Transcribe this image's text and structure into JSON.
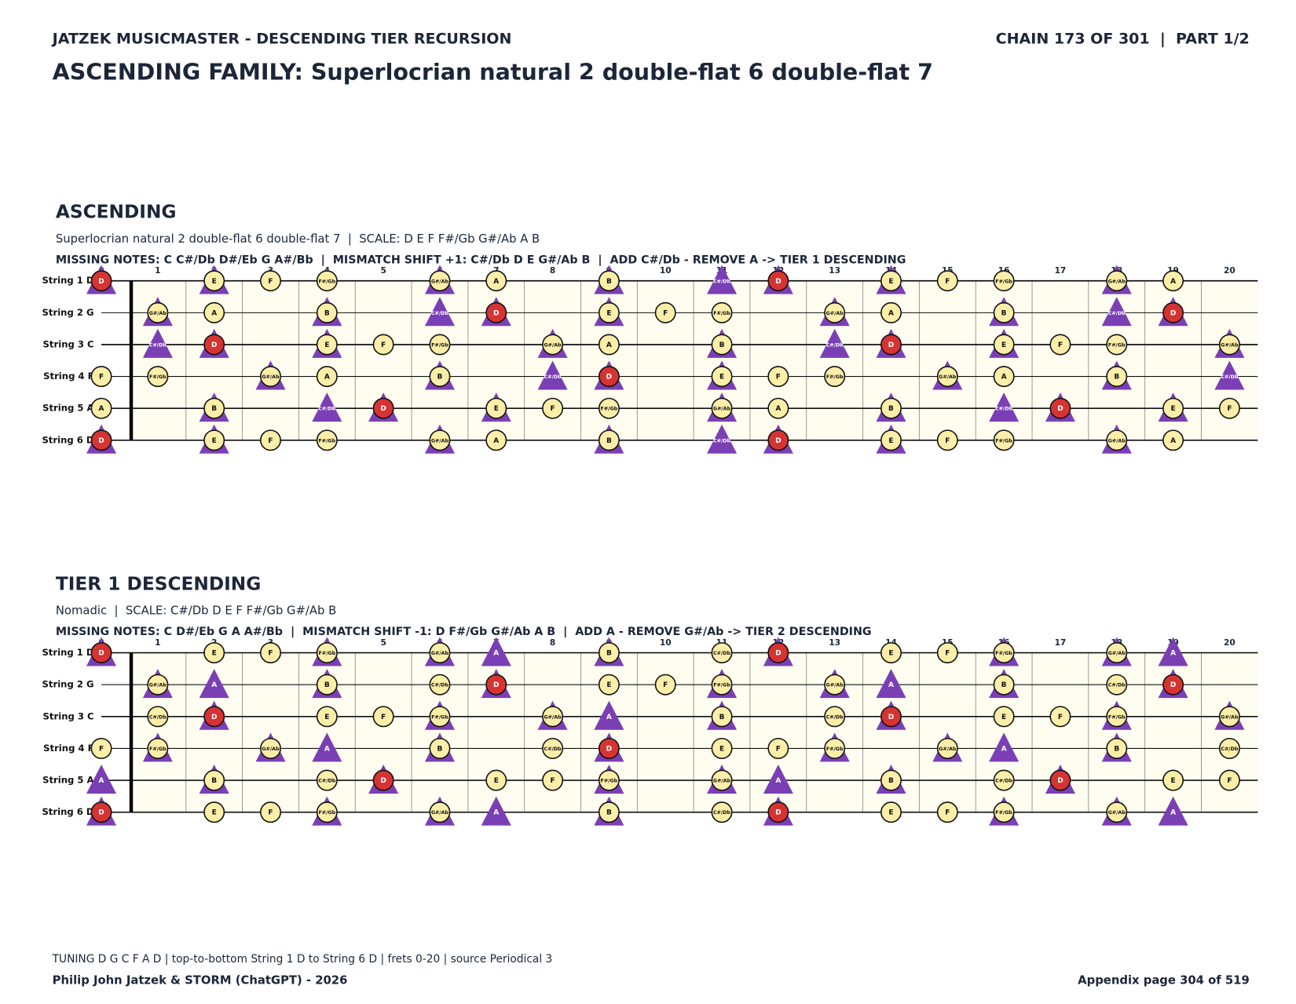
{
  "header": {
    "left": "JATZEK MUSICMASTER - DESCENDING TIER RECURSION",
    "right": "CHAIN 173 OF 301  |  PART 1/2",
    "title": "ASCENDING FAMILY: Superlocrian natural 2 double-flat 6 double-flat 7"
  },
  "sections": [
    {
      "heading": "ASCENDING",
      "scale_line": "Superlocrian natural 2 double-flat 6 double-flat 7  |  SCALE: D E F F#/Gb G#/Ab A B",
      "missing_line": "MISSING NOTES: C C#/Db D#/Eb G A#/Bb  |  MISMATCH SHIFT +1: C#/Db D E G#/Ab B  |  ADD C#/Db - REMOVE A -> TIER 1 DESCENDING",
      "root": "D",
      "highlight": [
        "C#/Db",
        "D",
        "E",
        "G#/Ab",
        "B"
      ],
      "added": "C#/Db",
      "strings": [
        "String 1 D",
        "String 2 G",
        "String 3 C",
        "String 4 F",
        "String 5 A",
        "String 6 D"
      ],
      "frets": [
        0,
        1,
        2,
        3,
        4,
        5,
        6,
        7,
        8,
        9,
        10,
        11,
        12,
        13,
        14,
        15,
        16,
        17,
        18,
        19,
        20
      ],
      "cells": [
        [
          "D",
          null,
          "E",
          "F",
          "F#/Gb",
          null,
          "G#/Ab",
          "A",
          null,
          "B",
          null,
          "C#/Db",
          "D",
          null,
          "E",
          "F",
          "F#/Gb",
          null,
          "G#/Ab",
          "A",
          null
        ],
        [
          null,
          "G#/Ab",
          "A",
          null,
          "B",
          null,
          "C#/Db",
          "D",
          null,
          "E",
          "F",
          "F#/Gb",
          null,
          "G#/Ab",
          "A",
          null,
          "B",
          null,
          "C#/Db",
          "D",
          null
        ],
        [
          null,
          "C#/Db",
          "D",
          null,
          "E",
          "F",
          "F#/Gb",
          null,
          "G#/Ab",
          "A",
          null,
          "B",
          null,
          "C#/Db",
          "D",
          null,
          "E",
          "F",
          "F#/Gb",
          null,
          "G#/Ab"
        ],
        [
          "F",
          "F#/Gb",
          null,
          "G#/Ab",
          "A",
          null,
          "B",
          null,
          "C#/Db",
          "D",
          null,
          "E",
          "F",
          "F#/Gb",
          null,
          "G#/Ab",
          "A",
          null,
          "B",
          null,
          "C#/Db"
        ],
        [
          "A",
          null,
          "B",
          null,
          "C#/Db",
          "D",
          null,
          "E",
          "F",
          "F#/Gb",
          null,
          "G#/Ab",
          "A",
          null,
          "B",
          null,
          "C#/Db",
          "D",
          null,
          "E",
          "F"
        ],
        [
          "D",
          null,
          "E",
          "F",
          "F#/Gb",
          null,
          "G#/Ab",
          "A",
          null,
          "B",
          null,
          "C#/Db",
          "D",
          null,
          "E",
          "F",
          "F#/Gb",
          null,
          "G#/Ab",
          "A",
          null
        ]
      ]
    },
    {
      "heading": "TIER 1 DESCENDING",
      "scale_line": "Nomadic  |  SCALE: C#/Db D E F F#/Gb G#/Ab B",
      "missing_line": "MISSING NOTES: C D#/Eb G A A#/Bb  |  MISMATCH SHIFT -1: D F#/Gb G#/Ab A B  |  ADD A - REMOVE G#/Ab -> TIER 2 DESCENDING",
      "root": "D",
      "highlight": [
        "D",
        "F#/Gb",
        "G#/Ab",
        "A",
        "B"
      ],
      "added": "A",
      "strings": [
        "String 1 D",
        "String 2 G",
        "String 3 C",
        "String 4 F",
        "String 5 A",
        "String 6 D"
      ],
      "frets": [
        0,
        1,
        2,
        3,
        4,
        5,
        6,
        7,
        8,
        9,
        10,
        11,
        12,
        13,
        14,
        15,
        16,
        17,
        18,
        19,
        20
      ],
      "cells": [
        [
          "D",
          null,
          "E",
          "F",
          "F#/Gb",
          null,
          "G#/Ab",
          "A",
          null,
          "B",
          null,
          "C#/Db",
          "D",
          null,
          "E",
          "F",
          "F#/Gb",
          null,
          "G#/Ab",
          "A",
          null
        ],
        [
          null,
          "G#/Ab",
          "A",
          null,
          "B",
          null,
          "C#/Db",
          "D",
          null,
          "E",
          "F",
          "F#/Gb",
          null,
          "G#/Ab",
          "A",
          null,
          "B",
          null,
          "C#/Db",
          "D",
          null
        ],
        [
          null,
          "C#/Db",
          "D",
          null,
          "E",
          "F",
          "F#/Gb",
          null,
          "G#/Ab",
          "A",
          null,
          "B",
          null,
          "C#/Db",
          "D",
          null,
          "E",
          "F",
          "F#/Gb",
          null,
          "G#/Ab"
        ],
        [
          "F",
          "F#/Gb",
          null,
          "G#/Ab",
          "A",
          null,
          "B",
          null,
          "C#/Db",
          "D",
          null,
          "E",
          "F",
          "F#/Gb",
          null,
          "G#/Ab",
          "A",
          null,
          "B",
          null,
          "C#/Db"
        ],
        [
          "A",
          null,
          "B",
          null,
          "C#/Db",
          "D",
          null,
          "E",
          "F",
          "F#/Gb",
          null,
          "G#/Ab",
          "A",
          null,
          "B",
          null,
          "C#/Db",
          "D",
          null,
          "E",
          "F"
        ],
        [
          "D",
          null,
          "E",
          "F",
          "F#/Gb",
          null,
          "G#/Ab",
          "A",
          null,
          "B",
          null,
          "C#/Db",
          "D",
          null,
          "E",
          "F",
          "F#/Gb",
          null,
          "G#/Ab",
          "A",
          null
        ]
      ]
    }
  ],
  "footer": {
    "tuning": "TUNING D G C F A D | top-to-bottom String 1 D to String 6 D | frets 0-20 | source Periodical 3",
    "credit": "Philip John Jatzek & STORM (ChatGPT) - 2026",
    "page": "Appendix page 304 of 519"
  }
}
